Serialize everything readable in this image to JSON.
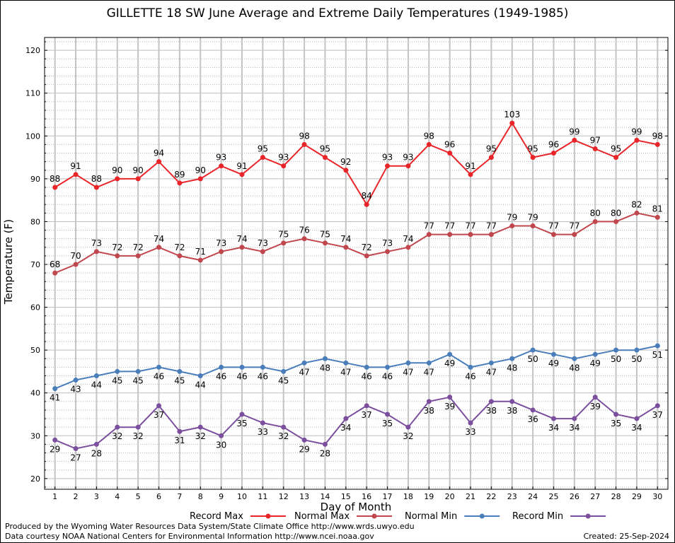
{
  "chart_data": {
    "type": "line",
    "title": "GILLETTE 18 SW June Average and Extreme Daily Temperatures (1949-1985)",
    "xlabel": "Day of Month",
    "ylabel": "Temperature (F)",
    "x": [
      1,
      2,
      3,
      4,
      5,
      6,
      7,
      8,
      9,
      10,
      11,
      12,
      13,
      14,
      15,
      16,
      17,
      18,
      19,
      20,
      21,
      22,
      23,
      24,
      25,
      26,
      27,
      28,
      29,
      30
    ],
    "xlim": [
      0.5,
      30.5
    ],
    "ylim": [
      17.5,
      123
    ],
    "yticks": [
      20,
      30,
      40,
      50,
      60,
      70,
      80,
      90,
      100,
      110,
      120
    ],
    "grid": true,
    "legend_position": "bottom",
    "series": [
      {
        "name": "Record Max",
        "color": "#e8262a",
        "label_position": "above",
        "values": [
          88,
          91,
          88,
          90,
          90,
          94,
          89,
          90,
          93,
          91,
          95,
          93,
          98,
          95,
          92,
          84,
          93,
          93,
          98,
          96,
          91,
          95,
          103,
          95,
          96,
          99,
          97,
          95,
          99,
          98
        ]
      },
      {
        "name": "Normal Max",
        "color": "#c0474d",
        "label_position": "above",
        "values": [
          68,
          70,
          73,
          72,
          72,
          74,
          72,
          71,
          73,
          74,
          73,
          75,
          76,
          75,
          74,
          72,
          73,
          74,
          77,
          77,
          77,
          77,
          79,
          79,
          77,
          77,
          80,
          80,
          82,
          81
        ]
      },
      {
        "name": "Normal Min",
        "color": "#4a7ebb",
        "label_position": "below",
        "values": [
          41,
          43,
          44,
          45,
          45,
          46,
          45,
          44,
          46,
          46,
          46,
          45,
          47,
          48,
          47,
          46,
          46,
          47,
          47,
          49,
          46,
          47,
          48,
          50,
          49,
          48,
          49,
          50,
          50,
          51
        ]
      },
      {
        "name": "Record Min",
        "color": "#7b4f9d",
        "label_position": "below",
        "values": [
          29,
          27,
          28,
          32,
          32,
          37,
          31,
          32,
          30,
          35,
          33,
          32,
          29,
          28,
          34,
          37,
          35,
          32,
          38,
          39,
          33,
          38,
          38,
          36,
          34,
          34,
          39,
          35,
          34,
          37
        ]
      }
    ]
  },
  "footer": {
    "credit_line_1": "Produced by the Wyoming Water Resources Data System/State Climate Office http://www.wrds.uwyo.edu",
    "credit_line_2": "Data courtesy NOAA National Centers for Environmental Information http://www.ncei.noaa.gov",
    "created": "Created:  25-Sep-2024"
  }
}
